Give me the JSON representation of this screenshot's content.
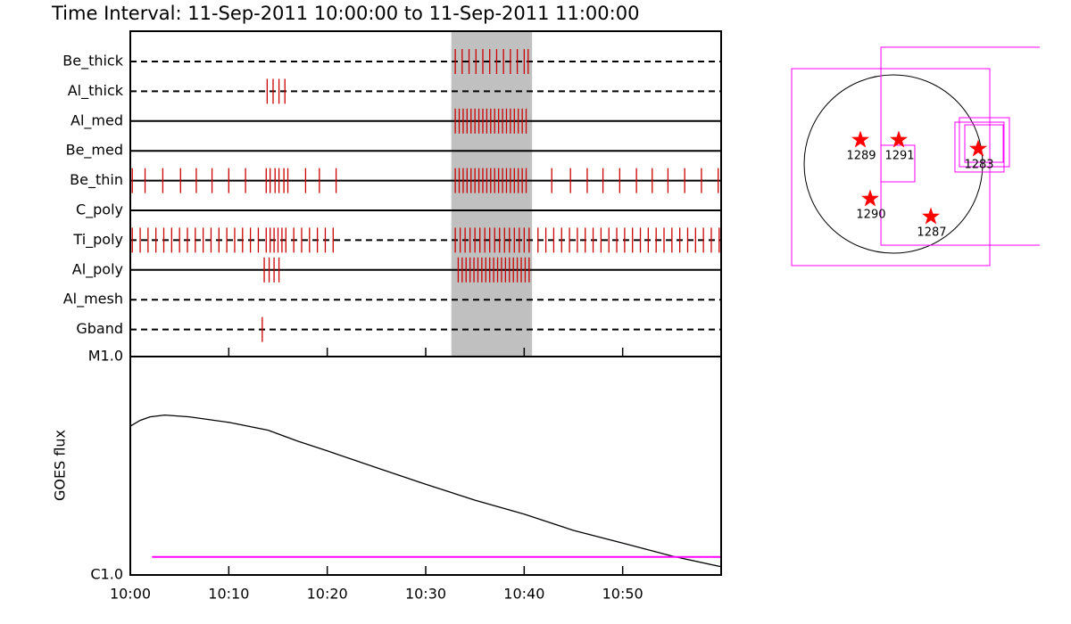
{
  "chart_data": [
    {
      "type": "timeline",
      "title": "Time Interval: 11-Sep-2011 10:00:00 to 11-Sep-2011 11:00:00",
      "categories": [
        "Be_thick",
        "Al_thick",
        "Al_med",
        "Be_med",
        "Be_thin",
        "C_poly",
        "Ti_poly",
        "Al_poly",
        "Al_mesh",
        "Gband"
      ],
      "line_styles": [
        "dashed",
        "dashed",
        "solid",
        "solid",
        "solid",
        "solid",
        "dashed",
        "solid",
        "dashed",
        "dashed"
      ],
      "events": [
        [
          33.0,
          33.7,
          34.4,
          35.1,
          35.8,
          36.5,
          37.2,
          37.9,
          38.6,
          39.3,
          40.0,
          40.4
        ],
        [
          13.9,
          14.5,
          15.1,
          15.7
        ],
        [
          33.0,
          33.4,
          33.8,
          34.2,
          34.6,
          35.0,
          35.4,
          35.8,
          36.2,
          36.6,
          37.0,
          37.4,
          37.8,
          38.2,
          38.6,
          39.0,
          39.4,
          39.8,
          40.2
        ],
        [],
        [
          0.2,
          1.5,
          3.3,
          5.1,
          6.7,
          8.3,
          10.0,
          11.7,
          13.8,
          14.2,
          14.7,
          15.1,
          15.6,
          16.0,
          17.8,
          19.2,
          20.9,
          33.0,
          33.4,
          33.8,
          34.2,
          34.6,
          35.0,
          35.4,
          35.8,
          36.2,
          36.6,
          37.0,
          37.4,
          37.8,
          38.2,
          38.6,
          39.0,
          39.4,
          39.8,
          40.2,
          42.8,
          44.7,
          46.4,
          48.0,
          49.7,
          51.4,
          53.0,
          54.6,
          56.3,
          58.0,
          59.7
        ],
        [],
        [
          0.2,
          1.0,
          1.8,
          2.6,
          3.4,
          4.2,
          5.0,
          5.8,
          6.6,
          7.4,
          8.2,
          9.0,
          9.8,
          10.6,
          11.4,
          12.2,
          13.0,
          13.8,
          14.2,
          14.6,
          15.0,
          15.4,
          15.8,
          16.6,
          17.4,
          18.2,
          19.0,
          19.8,
          20.6,
          33.0,
          33.5,
          34.0,
          34.5,
          35.0,
          35.5,
          36.0,
          36.5,
          37.0,
          37.5,
          38.0,
          38.5,
          39.0,
          39.5,
          40.0,
          40.5,
          41.4,
          42.2,
          43.0,
          43.8,
          44.6,
          45.4,
          46.2,
          47.0,
          47.8,
          48.6,
          49.4,
          50.2,
          51.0,
          51.8,
          52.6,
          53.4,
          54.2,
          55.0,
          55.8,
          56.6,
          57.4,
          58.2,
          59.0,
          59.8
        ],
        [
          13.6,
          14.1,
          14.6,
          15.1,
          33.3,
          33.7,
          34.1,
          34.5,
          34.9,
          35.3,
          35.7,
          36.1,
          36.5,
          36.9,
          37.3,
          37.7,
          38.1,
          38.5,
          38.9,
          39.3,
          39.7,
          40.1,
          40.5
        ],
        [],
        [
          13.4
        ]
      ],
      "event_color": "#cc0000",
      "highlight": [
        32.6,
        40.8
      ],
      "highlight_color": "#c0c0c0",
      "xlim": [
        0,
        60
      ]
    },
    {
      "type": "line",
      "ylabel": "GOES flux",
      "xlim": [
        0,
        60
      ],
      "xticks": [
        {
          "value": 0,
          "label": "10:00"
        },
        {
          "value": 10,
          "label": "10:10"
        },
        {
          "value": 20,
          "label": "10:20"
        },
        {
          "value": 30,
          "label": "10:30"
        },
        {
          "value": 40,
          "label": "10:40"
        },
        {
          "value": 50,
          "label": "10:50"
        }
      ],
      "ylog": true,
      "ylim": [
        1e-06,
        1e-05
      ],
      "yticks": [
        {
          "value": 1e-06,
          "label": "C1.0"
        },
        {
          "value": 1e-05,
          "label": "M1.0"
        }
      ],
      "series": [
        {
          "color": "#000000",
          "x": [
            0,
            1,
            2,
            3.5,
            6,
            10,
            14,
            17,
            20,
            25,
            30,
            35,
            40,
            45,
            50,
            55,
            60
          ],
          "values": [
            4.8e-06,
            5.1e-06,
            5.3e-06,
            5.4e-06,
            5.3e-06,
            5e-06,
            4.6e-06,
            4.1e-06,
            3.7e-06,
            3.1e-06,
            2.6e-06,
            2.2e-06,
            1.9e-06,
            1.6e-06,
            1.4e-06,
            1.22e-06,
            1.09e-06
          ]
        },
        {
          "color": "#ff00ff",
          "x": [
            2.2,
            60
          ],
          "values": [
            1.21e-06,
            1.21e-06
          ]
        }
      ]
    },
    {
      "type": "scatter",
      "disk_radius": 960,
      "x": [
        -355,
        58,
        912,
        -250,
        403
      ],
      "values": [
        259,
        259,
        163,
        -374,
        -566
      ],
      "labels": [
        "1289",
        "1291",
        "1283",
        "1290",
        "1287"
      ],
      "color": "#ff0000",
      "boxes": [
        [
          -1094,
          1027,
          1037,
          -1094
        ],
        [
          -134,
          1258,
          1910,
          -874
        ],
        [
          -134,
          202,
          230,
          -192
        ],
        [
          662,
          451,
          1190,
          -86
        ],
        [
          710,
          499,
          1248,
          -29
        ],
        [
          768,
          422,
          1181,
          19
        ]
      ],
      "box_color": "#ff00ff"
    }
  ]
}
